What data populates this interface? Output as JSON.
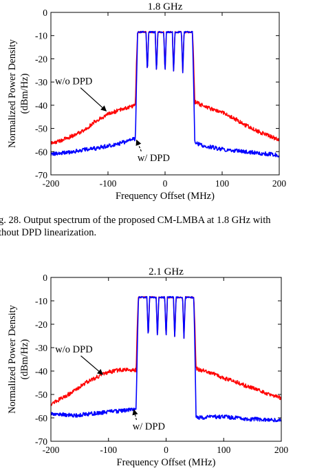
{
  "chart_data": [
    {
      "type": "line",
      "title": "1.8 GHz",
      "xlabel": "Frequency Offset (MHz)",
      "ylabel": [
        "Normalized Power Density",
        "(dBm/Hz)"
      ],
      "xlim": [
        -200,
        200
      ],
      "ylim": [
        -70,
        0
      ],
      "xticks": [
        -200,
        -100,
        0,
        100,
        200
      ],
      "yticks": [
        0,
        -10,
        -20,
        -30,
        -40,
        -50,
        -60,
        -70
      ],
      "grid": false,
      "series": [
        {
          "name": "w/o DPD",
          "color": "#ff0000",
          "x": [
            -200,
            -180,
            -160,
            -140,
            -120,
            -100,
            -80,
            -60,
            -52,
            -50,
            -48,
            48,
            50,
            52,
            60,
            80,
            100,
            120,
            140,
            160,
            180,
            200
          ],
          "y": [
            -56.5,
            -55,
            -53,
            -50.5,
            -46.5,
            -44,
            -42,
            -40.5,
            -40,
            -20,
            -8.5,
            -8.5,
            -20,
            -38.5,
            -39.5,
            -41.5,
            -43,
            -45.5,
            -48.5,
            -51,
            -53,
            -55
          ]
        },
        {
          "name": "w/ DPD",
          "color": "#0000ff",
          "x": [
            -200,
            -180,
            -160,
            -140,
            -120,
            -100,
            -80,
            -60,
            -52,
            -50,
            -48,
            48,
            50,
            52,
            60,
            80,
            100,
            120,
            140,
            160,
            180,
            200
          ],
          "y": [
            -61,
            -60.5,
            -60,
            -59,
            -58.5,
            -57.5,
            -56.5,
            -55,
            -54.5,
            -30,
            -8.5,
            -8.5,
            -30,
            -55.5,
            -57,
            -58,
            -59,
            -59.5,
            -60,
            -60.5,
            -61,
            -61.5
          ]
        }
      ],
      "notches": {
        "x": [
          -31,
          -15,
          0,
          15,
          31
        ],
        "depth": -26
      },
      "annotations": [
        {
          "text": "w/o DPD",
          "x": -160,
          "y": -31,
          "target_x": -103,
          "target_y": -42.5,
          "dash": false
        },
        {
          "text": "w/ DPD",
          "x": -20,
          "y": -64,
          "target_x": -50,
          "target_y": -55,
          "dash": true
        }
      ]
    },
    {
      "type": "line",
      "title": "2.1 GHz",
      "xlabel": "Frequency Offset (MHz)",
      "ylabel": [
        "Normalized Power Density",
        "(dBm/Hz)"
      ],
      "xlim": [
        -200,
        200
      ],
      "ylim": [
        -70,
        0
      ],
      "xticks": [
        -200,
        -100,
        0,
        100,
        200
      ],
      "yticks": [
        0,
        -10,
        -20,
        -30,
        -40,
        -50,
        -60,
        -70
      ],
      "grid": false,
      "series": [
        {
          "name": "w/o DPD",
          "color": "#ff0000",
          "x": [
            -200,
            -180,
            -160,
            -140,
            -120,
            -100,
            -80,
            -60,
            -52,
            -50,
            -48,
            48,
            50,
            52,
            60,
            80,
            100,
            120,
            140,
            160,
            180,
            200
          ],
          "y": [
            -54,
            -51.5,
            -48.5,
            -45,
            -42.5,
            -40.5,
            -39.5,
            -39.5,
            -39.5,
            -20,
            -8.5,
            -8.5,
            -20,
            -39,
            -39.5,
            -41,
            -43,
            -44.5,
            -46.5,
            -48,
            -50,
            -51.5
          ]
        },
        {
          "name": "w/ DPD",
          "color": "#0000ff",
          "x": [
            -200,
            -180,
            -160,
            -140,
            -120,
            -100,
            -80,
            -60,
            -52,
            -50,
            -48,
            48,
            50,
            52,
            60,
            80,
            100,
            120,
            140,
            160,
            180,
            200
          ],
          "y": [
            -58,
            -58.5,
            -59,
            -58.5,
            -58,
            -57.5,
            -57,
            -56.5,
            -56,
            -30,
            -8.5,
            -8.5,
            -30,
            -59.5,
            -60,
            -59.5,
            -59.5,
            -60,
            -60.5,
            -60.5,
            -61,
            -61
          ]
        }
      ],
      "notches": {
        "x": [
          -31,
          -15,
          0,
          15,
          31
        ],
        "depth": -26
      },
      "annotations": [
        {
          "text": "w/o DPD",
          "x": -160,
          "y": -32,
          "target_x": -110,
          "target_y": -41.5,
          "dash": false
        },
        {
          "text": "w/ DPD",
          "x": -30,
          "y": -65,
          "target_x": -56,
          "target_y": -56.5,
          "dash": true
        }
      ]
    }
  ],
  "caption1": {
    "line1": "g. 28.  Output spectrum of the proposed CM-LMBA at 1.8 GHz with",
    "line2": "thout DPD linearization."
  }
}
